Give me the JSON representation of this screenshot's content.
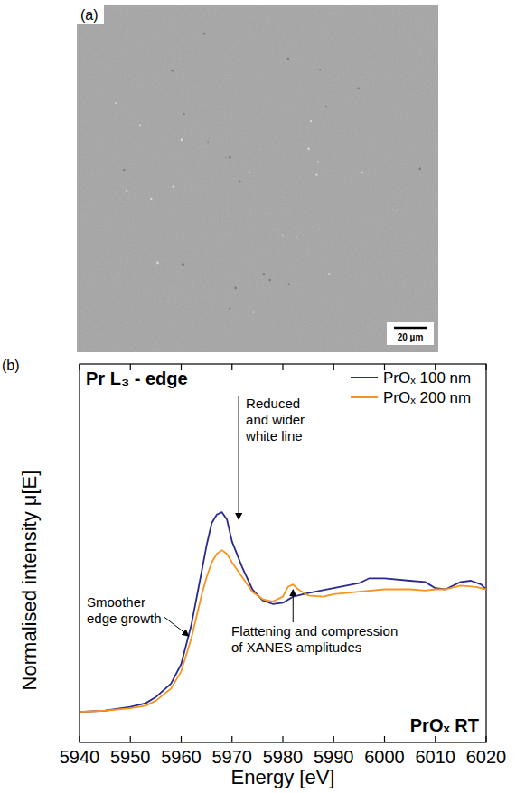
{
  "image_panel": {
    "panel_label": "(a)",
    "scale_bar_label": "20 µm"
  },
  "chart_panel_label": "(b)",
  "chart_data": {
    "type": "line",
    "title": "Pr L₃ - edge",
    "xlabel": "Energy [eV]",
    "ylabel": "Normalised intensity μ[E]",
    "annotations": [
      "Reduced and wider white line",
      "Smoother edge growth",
      "Flattening and compression of XANES amplitudes",
      "PrOₓ RT"
    ],
    "xlim": [
      5940,
      6020
    ],
    "xticks": [
      5940,
      5950,
      5960,
      5970,
      5980,
      5990,
      6000,
      6010,
      6020
    ],
    "ylim": [
      -0.25,
      2.84
    ],
    "tick_labels": "x",
    "grid": false,
    "legend": "top-right",
    "series": [
      {
        "name": "PrOₓ 100 nm",
        "color": "#2b2a8e",
        "line_style": "solid",
        "x": [
          5940,
          5945,
          5950,
          5953,
          5955,
          5958,
          5960,
          5962,
          5964,
          5965,
          5966,
          5967,
          5968,
          5969,
          5970,
          5972,
          5974,
          5976,
          5978,
          5980,
          5982,
          5985,
          5990,
          5995,
          5997,
          6000,
          6005,
          6008,
          6010,
          6012,
          6015,
          6017,
          6019,
          6020
        ],
        "values": [
          0,
          0.01,
          0.04,
          0.07,
          0.12,
          0.23,
          0.39,
          0.71,
          1.14,
          1.36,
          1.54,
          1.61,
          1.63,
          1.57,
          1.39,
          1.18,
          1.0,
          0.91,
          0.88,
          0.89,
          0.94,
          0.97,
          1.01,
          1.05,
          1.09,
          1.09,
          1.07,
          1.06,
          1.01,
          1.0,
          1.06,
          1.07,
          1.04,
          1.0
        ]
      },
      {
        "name": "PrOₓ 200 nm",
        "color": "#f7941d",
        "line_style": "solid",
        "x": [
          5940,
          5945,
          5950,
          5953,
          5955,
          5958,
          5960,
          5962,
          5964,
          5965,
          5966,
          5967,
          5968,
          5969,
          5970,
          5972,
          5974,
          5976,
          5978,
          5980,
          5981,
          5982,
          5983,
          5985,
          5988,
          5990,
          5995,
          6000,
          6005,
          6008,
          6010,
          6012,
          6015,
          6018,
          6020
        ],
        "values": [
          0,
          0.01,
          0.03,
          0.05,
          0.09,
          0.19,
          0.33,
          0.6,
          0.95,
          1.1,
          1.22,
          1.29,
          1.32,
          1.29,
          1.22,
          1.1,
          0.98,
          0.92,
          0.9,
          0.94,
          1.02,
          1.04,
          1.0,
          0.95,
          0.94,
          0.96,
          0.98,
          1.0,
          1.0,
          0.99,
          1.0,
          1.0,
          1.03,
          1.02,
          1.0
        ]
      }
    ]
  }
}
